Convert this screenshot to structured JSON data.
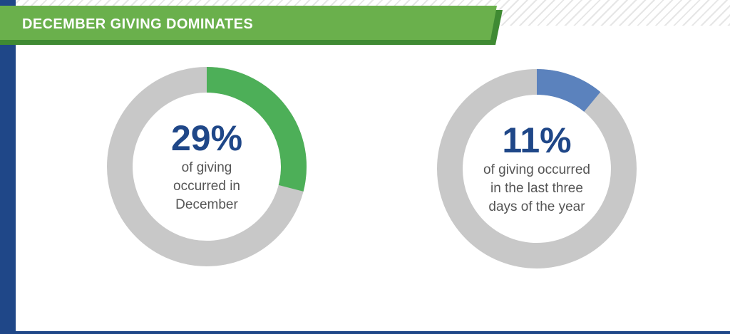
{
  "header": {
    "title": "DECEMBER GIVING DOMINATES"
  },
  "colors": {
    "banner_green": "#6ab04c",
    "banner_green_dark": "#3f8a33",
    "left_bar_blue": "#1f4788",
    "donut_track": "#c8c8c8",
    "december_green": "#4daf58",
    "last_days_blue": "#5b82bd",
    "percent_text": "#1f4788"
  },
  "chart_data": [
    {
      "type": "pie",
      "variant": "donut",
      "values": [
        29,
        71
      ],
      "highlight_value": 29,
      "value_label": "29%",
      "caption": [
        "of giving",
        "occurred in",
        "December"
      ]
    },
    {
      "type": "pie",
      "variant": "donut",
      "values": [
        11,
        89
      ],
      "highlight_value": 11,
      "value_label": "11%",
      "caption": [
        "of giving occurred",
        "in the last three",
        "days of the year"
      ]
    }
  ]
}
